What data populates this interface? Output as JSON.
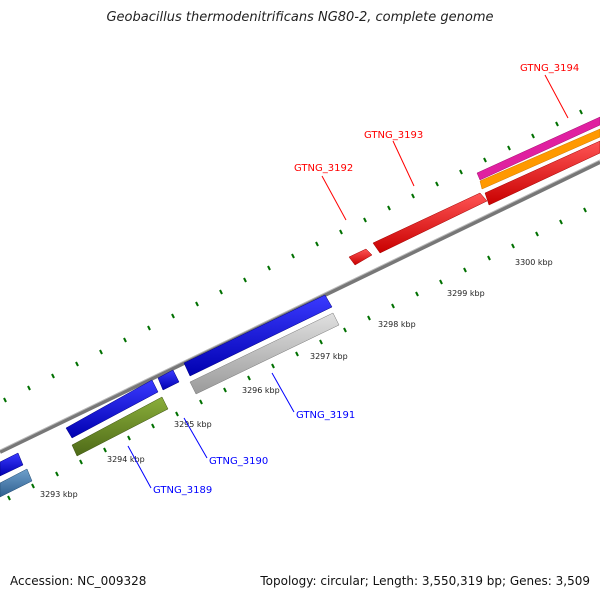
{
  "title": "Geobacillus thermodenitrificans NG80-2, complete genome",
  "footer": {
    "accession": "Accession: NC_009328",
    "summary": "Topology: circular; Length: 3,550,319 bp; Genes: 3,509"
  },
  "colors": {
    "forward_gene": "#ff0000",
    "reverse_gene": "#0000ff",
    "backbone": "#888888",
    "tick": "#007000",
    "gray_gene": "#c0c0c0",
    "olive_gene": "#6b8e23",
    "steelblue_gene": "#4682b4",
    "magenta_gene": "#e020a0",
    "orange_gene": "#ff9900"
  },
  "kbp_labels": [
    "3293 kbp",
    "3294 kbp",
    "3295 kbp",
    "3296 kbp",
    "3297 kbp",
    "3298 kbp",
    "3299 kbp",
    "3300 kbp"
  ],
  "forward_labels": [
    "GTNG_3192",
    "GTNG_3193",
    "GTNG_3194"
  ],
  "reverse_labels": [
    "GTNG_3189",
    "GTNG_3190",
    "GTNG_3191"
  ]
}
